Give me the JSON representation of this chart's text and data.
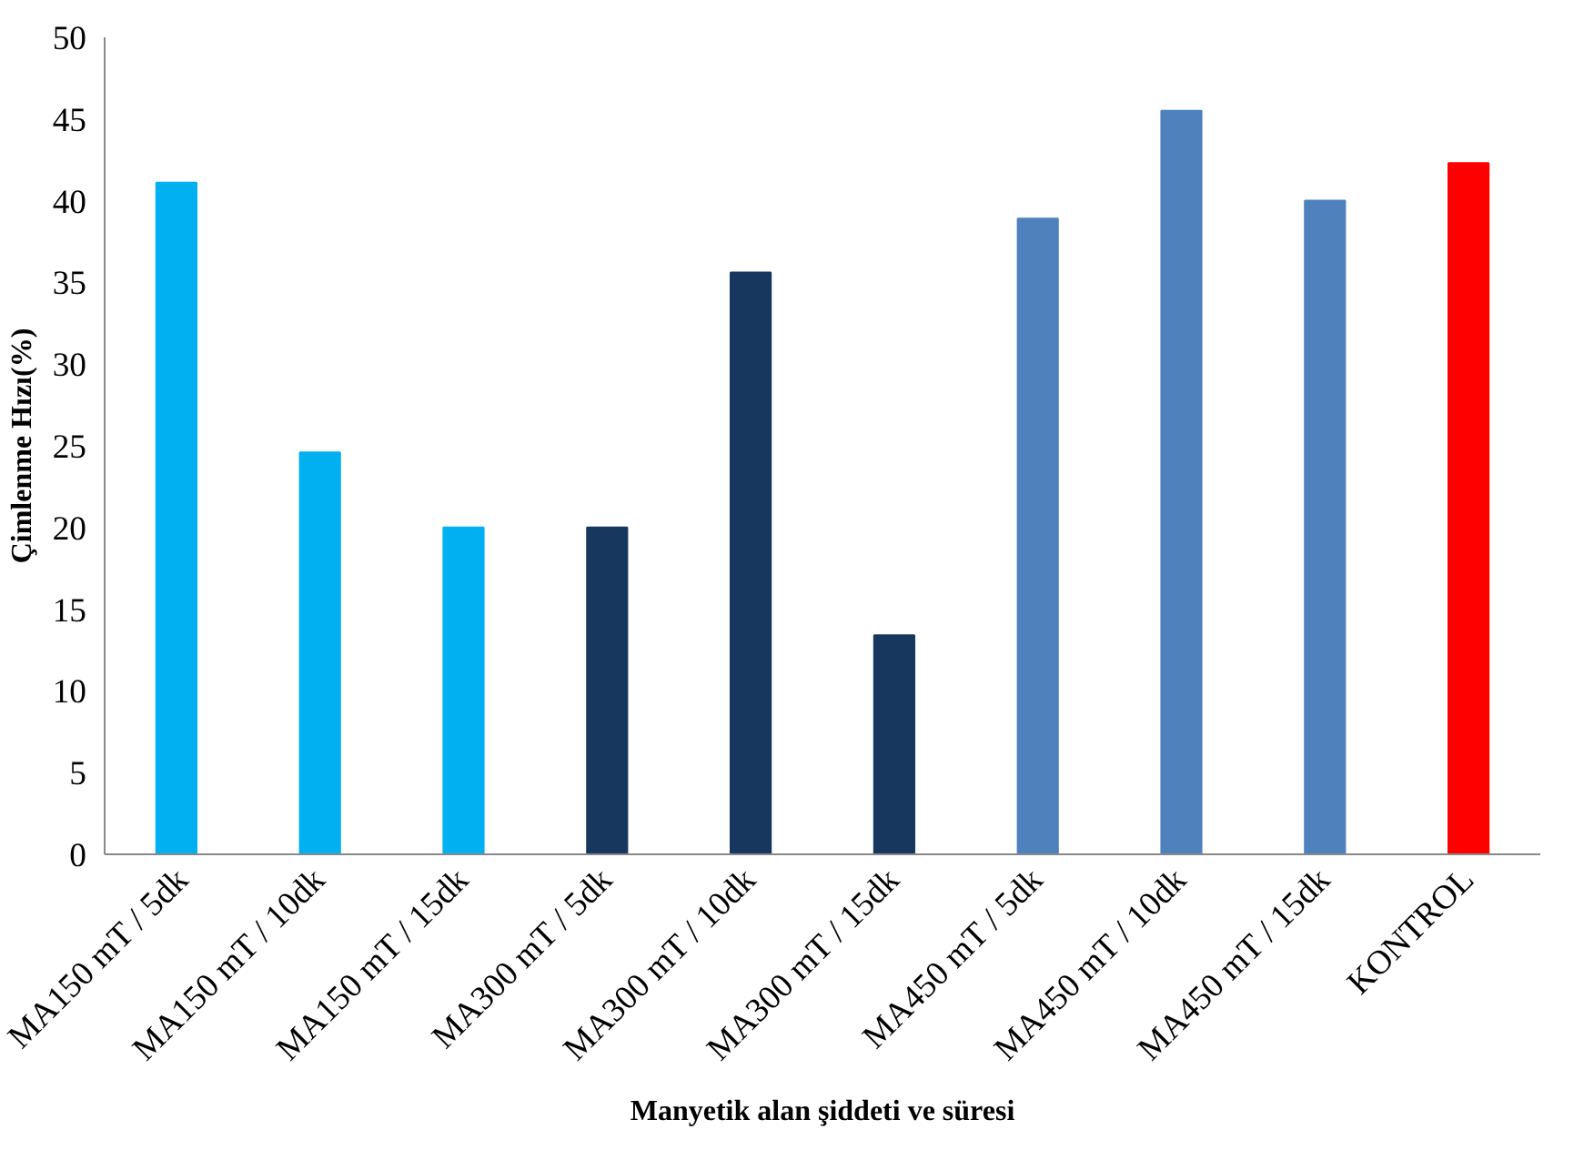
{
  "chart_data": {
    "type": "bar",
    "xlabel": "Manyetik alan şiddeti ve süresi",
    "ylabel": "Çimlenme Hızı(%)",
    "categories": [
      "MA150 mT / 5dk",
      "MA150 mT / 10dk",
      "MA150 mT / 15dk",
      "MA300 mT / 5dk",
      "MA300 mT / 10dk",
      "MA300 mT / 15dk",
      "MA450 mT / 5dk",
      "MA450 mT / 10dk",
      "MA450 mT / 15dk",
      "KONTROL"
    ],
    "values": [
      41.1,
      24.6,
      20,
      20,
      35.6,
      13.4,
      38.9,
      45.5,
      40,
      42.3
    ],
    "colors": [
      "#00b0f0",
      "#00b0f0",
      "#00b0f0",
      "#17375e",
      "#17375e",
      "#17375e",
      "#4f81bd",
      "#4f81bd",
      "#4f81bd",
      "#ff0000"
    ],
    "ylim": [
      0,
      50
    ],
    "yticks": [
      0,
      5,
      10,
      15,
      20,
      25,
      30,
      35,
      40,
      45,
      50
    ],
    "grid": false
  }
}
